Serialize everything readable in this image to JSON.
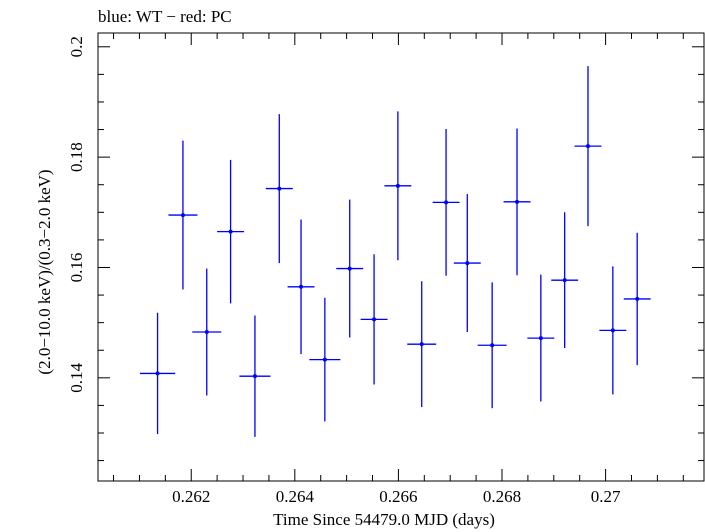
{
  "chart_data": {
    "type": "scatter",
    "title": "blue: WT − red: PC",
    "xlabel": "Time Since 54479.0 MJD (days)",
    "ylabel": "(2.0−10.0 keV)/(0.3−2.0 keV)",
    "xlim": [
      0.2602,
      0.2719
    ],
    "ylim": [
      0.1213,
      0.2025
    ],
    "xticks": [
      0.262,
      0.264,
      0.266,
      0.268,
      0.27
    ],
    "xtick_labels": [
      "0.262",
      "0.264",
      "0.266",
      "0.268",
      "0.27"
    ],
    "yticks": [
      0.14,
      0.16,
      0.18,
      0.2
    ],
    "ytick_labels": [
      "0.14",
      "0.16",
      "0.18",
      "0.2"
    ],
    "grid": false,
    "color": "#0000ff",
    "series": [
      {
        "points": [
          {
            "x": 0.26135,
            "xerr": 0.00034,
            "y": 0.1408,
            "yerr": 0.011
          },
          {
            "x": 0.26184,
            "xerr": 0.00028,
            "y": 0.1695,
            "yerr": 0.0135
          },
          {
            "x": 0.2623,
            "xerr": 0.00028,
            "y": 0.1483,
            "yerr": 0.0115
          },
          {
            "x": 0.26276,
            "xerr": 0.00026,
            "y": 0.1665,
            "yerr": 0.013
          },
          {
            "x": 0.26323,
            "xerr": 0.0003,
            "y": 0.1403,
            "yerr": 0.011
          },
          {
            "x": 0.2637,
            "xerr": 0.00026,
            "y": 0.1743,
            "yerr": 0.0135
          },
          {
            "x": 0.26412,
            "xerr": 0.00026,
            "y": 0.1565,
            "yerr": 0.0122
          },
          {
            "x": 0.26458,
            "xerr": 0.0003,
            "y": 0.1433,
            "yerr": 0.0112
          },
          {
            "x": 0.26506,
            "xerr": 0.00026,
            "y": 0.1598,
            "yerr": 0.0125
          },
          {
            "x": 0.26553,
            "xerr": 0.00026,
            "y": 0.1506,
            "yerr": 0.0118
          },
          {
            "x": 0.26599,
            "xerr": 0.00026,
            "y": 0.1748,
            "yerr": 0.0135
          },
          {
            "x": 0.26645,
            "xerr": 0.00028,
            "y": 0.1461,
            "yerr": 0.0114
          },
          {
            "x": 0.26692,
            "xerr": 0.00026,
            "y": 0.1718,
            "yerr": 0.0133
          },
          {
            "x": 0.26733,
            "xerr": 0.00026,
            "y": 0.1608,
            "yerr": 0.0125
          },
          {
            "x": 0.26781,
            "xerr": 0.00028,
            "y": 0.1459,
            "yerr": 0.0114
          },
          {
            "x": 0.26829,
            "xerr": 0.00026,
            "y": 0.1719,
            "yerr": 0.0133
          },
          {
            "x": 0.26875,
            "xerr": 0.00026,
            "y": 0.1472,
            "yerr": 0.0115
          },
          {
            "x": 0.26921,
            "xerr": 0.00026,
            "y": 0.1577,
            "yerr": 0.0123
          },
          {
            "x": 0.26966,
            "xerr": 0.00026,
            "y": 0.182,
            "yerr": 0.0145
          },
          {
            "x": 0.27014,
            "xerr": 0.00026,
            "y": 0.1486,
            "yerr": 0.0116
          },
          {
            "x": 0.27061,
            "xerr": 0.00026,
            "y": 0.1543,
            "yerr": 0.012
          }
        ]
      }
    ]
  }
}
